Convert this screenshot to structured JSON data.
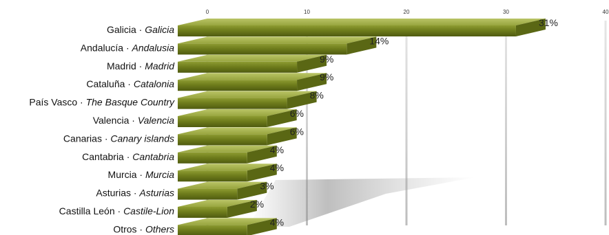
{
  "chart_data": {
    "type": "bar",
    "orientation": "horizontal",
    "xlim": [
      0,
      40
    ],
    "x_ticks": [
      0,
      10,
      20,
      30,
      40
    ],
    "grid": true,
    "bar_color": "#6f7d1c",
    "categories": [
      {
        "es": "Galicia",
        "en": "Galicia",
        "value": 31,
        "label": "31%"
      },
      {
        "es": "Andalucía",
        "en": "Andalusia",
        "value": 14,
        "label": "14%"
      },
      {
        "es": "Madrid",
        "en": "Madrid",
        "value": 9,
        "label": "9%"
      },
      {
        "es": "Cataluña",
        "en": "Catalonia",
        "value": 9,
        "label": "9%"
      },
      {
        "es": "País Vasco",
        "en": "The Basque Country",
        "value": 8,
        "label": "8%"
      },
      {
        "es": "Valencia ",
        "en": "Valencia",
        "value": 6,
        "label": "6%"
      },
      {
        "es": "Canarias",
        "en": "Canary islands",
        "value": 6,
        "label": "6%"
      },
      {
        "es": "Cantabria",
        "en": "Cantabria",
        "value": 4,
        "label": "4%"
      },
      {
        "es": "Murcia",
        "en": "Murcia",
        "value": 4,
        "label": "4%"
      },
      {
        "es": "Asturias",
        "en": "Asturias",
        "value": 3,
        "label": "3%"
      },
      {
        "es": "Castilla León",
        "en": "Castile-Lion",
        "value": 2,
        "label": "2%"
      },
      {
        "es": "Otros",
        "en": "Others",
        "value": 4,
        "label": "4%"
      }
    ],
    "separator": " · "
  }
}
